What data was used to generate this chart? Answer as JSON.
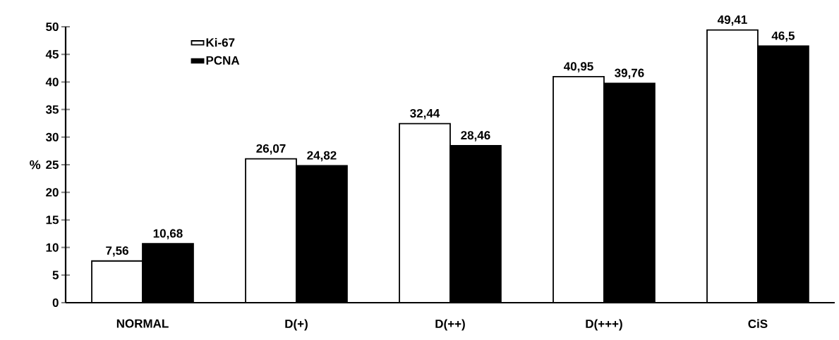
{
  "chart_data": {
    "type": "bar",
    "ylabel": "%",
    "categories": [
      "NORMAL",
      "D(+)",
      "D(++)",
      "D(+++)",
      "CiS"
    ],
    "series": [
      {
        "name": "Ki-67",
        "color": "#ffffff",
        "values": [
          7.56,
          26.07,
          32.44,
          40.95,
          49.41
        ],
        "value_labels": [
          "7,56",
          "26,07",
          "32,44",
          "40,95",
          "49,41"
        ]
      },
      {
        "name": "PCNA",
        "color": "#000000",
        "values": [
          10.68,
          24.82,
          28.46,
          39.76,
          46.5
        ],
        "value_labels": [
          "10,68",
          "24,82",
          "28,46",
          "39,76",
          "46,5"
        ]
      }
    ],
    "ylim": [
      0,
      50
    ],
    "yticks": [
      0,
      5,
      10,
      15,
      20,
      25,
      30,
      35,
      40,
      45,
      50
    ],
    "legend": "top left",
    "grid": false
  }
}
